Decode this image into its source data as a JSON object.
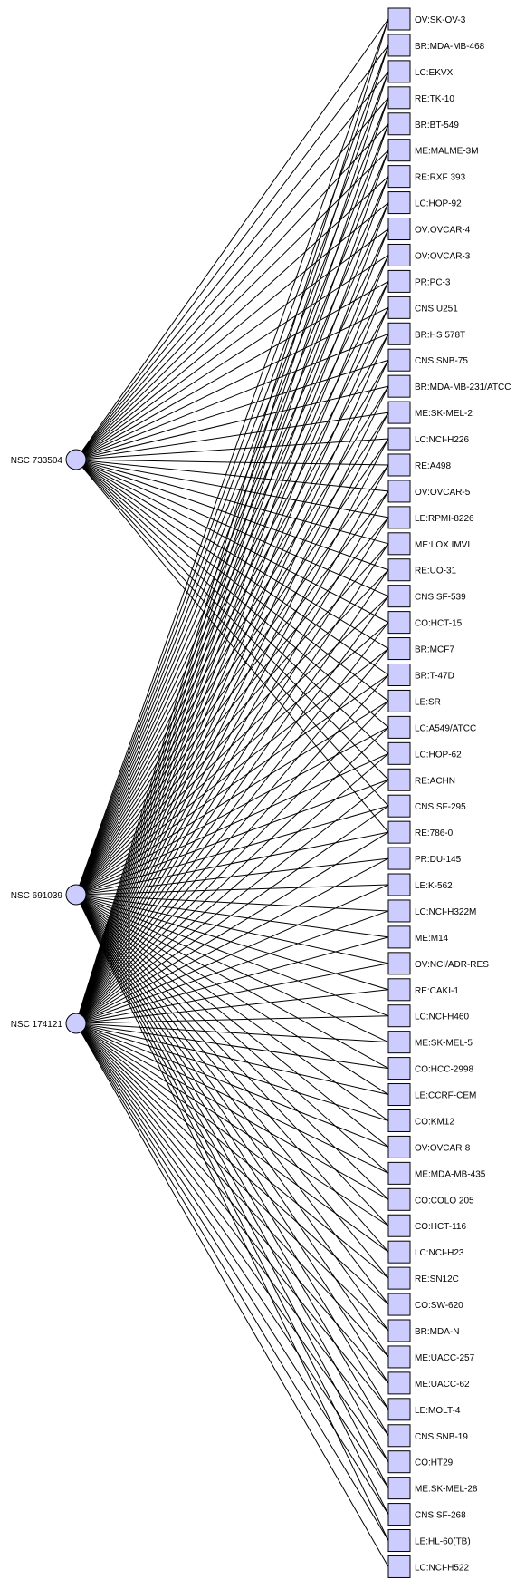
{
  "compounds": [
    {
      "id": "c1",
      "label": "NSC 733504"
    },
    {
      "id": "c2",
      "label": "NSC 691039"
    },
    {
      "id": "c3",
      "label": "NSC 174121"
    }
  ],
  "cell_lines": [
    {
      "label": "OV:SK-OV-3",
      "links": [
        "c1",
        "c2",
        "c3"
      ]
    },
    {
      "label": "BR:MDA-MB-468",
      "links": [
        "c1",
        "c2",
        "c3"
      ]
    },
    {
      "label": "LC:EKVX",
      "links": [
        "c1",
        "c2",
        "c3"
      ]
    },
    {
      "label": "RE:TK-10",
      "links": [
        "c1",
        "c2",
        "c3"
      ]
    },
    {
      "label": "BR:BT-549",
      "links": [
        "c1",
        "c2",
        "c3"
      ]
    },
    {
      "label": "ME:MALME-3M",
      "links": [
        "c1",
        "c2",
        "c3"
      ]
    },
    {
      "label": "RE:RXF 393",
      "links": [
        "c1",
        "c2",
        "c3"
      ]
    },
    {
      "label": "LC:HOP-92",
      "links": [
        "c1",
        "c2",
        "c3"
      ]
    },
    {
      "label": "OV:OVCAR-4",
      "links": [
        "c1",
        "c2",
        "c3"
      ]
    },
    {
      "label": "OV:OVCAR-3",
      "links": [
        "c1",
        "c2",
        "c3"
      ]
    },
    {
      "label": "PR:PC-3",
      "links": [
        "c1",
        "c2",
        "c3"
      ]
    },
    {
      "label": "CNS:U251",
      "links": [
        "c1",
        "c2",
        "c3"
      ]
    },
    {
      "label": "BR:HS 578T",
      "links": [
        "c1",
        "c2",
        "c3"
      ]
    },
    {
      "label": "CNS:SNB-75",
      "links": [
        "c1",
        "c2",
        "c3"
      ]
    },
    {
      "label": "BR:MDA-MB-231/ATCC",
      "links": [
        "c1",
        "c2",
        "c3"
      ]
    },
    {
      "label": "ME:SK-MEL-2",
      "links": [
        "c1",
        "c2",
        "c3"
      ]
    },
    {
      "label": "LC:NCI-H226",
      "links": [
        "c1",
        "c2",
        "c3"
      ]
    },
    {
      "label": "RE:A498",
      "links": [
        "c1",
        "c2",
        "c3"
      ]
    },
    {
      "label": "OV:OVCAR-5",
      "links": [
        "c1",
        "c2",
        "c3"
      ]
    },
    {
      "label": "LE:RPMI-8226",
      "links": [
        "c1",
        "c2",
        "c3"
      ]
    },
    {
      "label": "ME:LOX IMVI",
      "links": [
        "c1",
        "c2",
        "c3"
      ]
    },
    {
      "label": "RE:UO-31",
      "links": [
        "c1",
        "c2",
        "c3"
      ]
    },
    {
      "label": "CNS:SF-539",
      "links": [
        "c1",
        "c2",
        "c3"
      ]
    },
    {
      "label": "CO:HCT-15",
      "links": [
        "c1",
        "c2",
        "c3"
      ]
    },
    {
      "label": "BR:MCF7",
      "links": [
        "c1",
        "c2",
        "c3"
      ]
    },
    {
      "label": "BR:T-47D",
      "links": [
        "c1",
        "c2",
        "c3"
      ]
    },
    {
      "label": "LE:SR",
      "links": [
        "c1",
        "c2",
        "c3"
      ]
    },
    {
      "label": "LC:A549/ATCC",
      "links": [
        "c1",
        "c2",
        "c3"
      ]
    },
    {
      "label": "LC:HOP-62",
      "links": [
        "c1",
        "c2",
        "c3"
      ]
    },
    {
      "label": "RE:ACHN",
      "links": [
        "c1",
        "c2",
        "c3"
      ]
    },
    {
      "label": "CNS:SF-295",
      "links": [
        "c1",
        "c2",
        "c3"
      ]
    },
    {
      "label": "RE:786-0",
      "links": [
        "c1",
        "c2",
        "c3"
      ]
    },
    {
      "label": "PR:DU-145",
      "links": [
        "c2",
        "c3"
      ]
    },
    {
      "label": "LE:K-562",
      "links": [
        "c2",
        "c3"
      ]
    },
    {
      "label": "LC:NCI-H322M",
      "links": [
        "c2",
        "c3"
      ]
    },
    {
      "label": "ME:M14",
      "links": [
        "c2",
        "c3"
      ]
    },
    {
      "label": "OV:NCI/ADR-RES",
      "links": [
        "c2",
        "c3"
      ]
    },
    {
      "label": "RE:CAKI-1",
      "links": [
        "c2",
        "c3"
      ]
    },
    {
      "label": "LC:NCI-H460",
      "links": [
        "c2",
        "c3"
      ]
    },
    {
      "label": "ME:SK-MEL-5",
      "links": [
        "c2",
        "c3"
      ]
    },
    {
      "label": "CO:HCC-2998",
      "links": [
        "c2",
        "c3"
      ]
    },
    {
      "label": "LE:CCRF-CEM",
      "links": [
        "c2",
        "c3"
      ]
    },
    {
      "label": "CO:KM12",
      "links": [
        "c2",
        "c3"
      ]
    },
    {
      "label": "OV:OVCAR-8",
      "links": [
        "c2",
        "c3"
      ]
    },
    {
      "label": "ME:MDA-MB-435",
      "links": [
        "c2",
        "c3"
      ]
    },
    {
      "label": "CO:COLO 205",
      "links": [
        "c2",
        "c3"
      ]
    },
    {
      "label": "CO:HCT-116",
      "links": [
        "c2",
        "c3"
      ]
    },
    {
      "label": "LC:NCI-H23",
      "links": [
        "c2",
        "c3"
      ]
    },
    {
      "label": "RE:SN12C",
      "links": [
        "c2",
        "c3"
      ]
    },
    {
      "label": "CO:SW-620",
      "links": [
        "c2",
        "c3"
      ]
    },
    {
      "label": "BR:MDA-N",
      "links": [
        "c2",
        "c3"
      ]
    },
    {
      "label": "ME:UACC-257",
      "links": [
        "c2",
        "c3"
      ]
    },
    {
      "label": "ME:UACC-62",
      "links": [
        "c2",
        "c3"
      ]
    },
    {
      "label": "LE:MOLT-4",
      "links": [
        "c2",
        "c3"
      ]
    },
    {
      "label": "CNS:SNB-19",
      "links": [
        "c2",
        "c3"
      ]
    },
    {
      "label": "CO:HT29",
      "links": [
        "c2",
        "c3"
      ]
    },
    {
      "label": "ME:SK-MEL-28",
      "links": [
        "c2",
        "c3"
      ]
    },
    {
      "label": "CNS:SF-268",
      "links": [
        "c2",
        "c3"
      ]
    },
    {
      "label": "LE:HL-60(TB)",
      "links": [
        "c2",
        "c3"
      ]
    },
    {
      "label": "LC:NCI-H522",
      "links": [
        "c3"
      ]
    }
  ],
  "colors": {
    "node_fill": "#ccccff",
    "stroke": "#000000"
  }
}
